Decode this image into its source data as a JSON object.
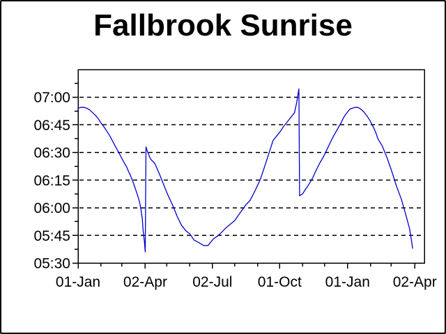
{
  "page": {
    "background_color": "#ffffff",
    "frame_border_color": "#000000"
  },
  "chart_data": {
    "type": "line",
    "title": "Fallbrook Sunrise",
    "legend": "none",
    "grid": {
      "horizontal": "dashed",
      "vertical": "none",
      "color": "#000000"
    },
    "x_axis": {
      "unit": "date",
      "domain_days": [
        0,
        469
      ],
      "major_ticks": [
        {
          "day": 0,
          "label": "01-Jan"
        },
        {
          "day": 91,
          "label": "02-Apr"
        },
        {
          "day": 182,
          "label": "02-Jul"
        },
        {
          "day": 273,
          "label": "01-Oct"
        },
        {
          "day": 365,
          "label": "01-Jan"
        },
        {
          "day": 456,
          "label": "02-Apr"
        }
      ],
      "minor_tick_days": [
        31,
        59,
        120,
        151,
        212,
        243,
        304,
        334,
        396,
        424
      ]
    },
    "y_axis": {
      "unit": "time-of-day",
      "domain_minutes": [
        330,
        435
      ],
      "domain_labels": [
        "05:30",
        "07:15"
      ],
      "major_ticks": [
        {
          "minutes": 420,
          "label": "07:00"
        },
        {
          "minutes": 405,
          "label": "06:45"
        },
        {
          "minutes": 390,
          "label": "06:30"
        },
        {
          "minutes": 375,
          "label": "06:15"
        },
        {
          "minutes": 360,
          "label": "06:00"
        },
        {
          "minutes": 345,
          "label": "05:45"
        },
        {
          "minutes": 330,
          "label": "05:30"
        }
      ],
      "minor_tick_minutes": [
        427.5,
        412.5,
        397.5,
        382.5,
        367.5,
        352.5,
        337.5
      ]
    },
    "series": [
      {
        "name": "sunrise-time",
        "color": "#0000cc",
        "points_day_minutes": [
          [
            0,
            414
          ],
          [
            4,
            414.5
          ],
          [
            8,
            414.5
          ],
          [
            12,
            414
          ],
          [
            16,
            413
          ],
          [
            20,
            411.5
          ],
          [
            24,
            410
          ],
          [
            28,
            408
          ],
          [
            31,
            406
          ],
          [
            35,
            404
          ],
          [
            39,
            401.5
          ],
          [
            43,
            399
          ],
          [
            47,
            396
          ],
          [
            51,
            393
          ],
          [
            55,
            390
          ],
          [
            59,
            387
          ],
          [
            63,
            384
          ],
          [
            66,
            382
          ],
          [
            68,
            380
          ],
          [
            71,
            377.5
          ],
          [
            74,
            374.5
          ],
          [
            77,
            371
          ],
          [
            80,
            367.5
          ],
          [
            83,
            363.5
          ],
          [
            85,
            359.5
          ],
          [
            87,
            354
          ],
          [
            88,
            348
          ],
          [
            90,
            341
          ],
          [
            91,
            336
          ],
          [
            92,
            393
          ],
          [
            94,
            390.5
          ],
          [
            98,
            386.5
          ],
          [
            104,
            384
          ],
          [
            110,
            378.5
          ],
          [
            116,
            372.5
          ],
          [
            121,
            367.5
          ],
          [
            128,
            361.5
          ],
          [
            134,
            355.5
          ],
          [
            140,
            350.5
          ],
          [
            146,
            347.5
          ],
          [
            151,
            346
          ],
          [
            157,
            342.5
          ],
          [
            164,
            341
          ],
          [
            170,
            339.5
          ],
          [
            176,
            339.5
          ],
          [
            183,
            343
          ],
          [
            190,
            345
          ],
          [
            194,
            346.5
          ],
          [
            200,
            349
          ],
          [
            206,
            351
          ],
          [
            212,
            353
          ],
          [
            219,
            357
          ],
          [
            227,
            361.5
          ],
          [
            233,
            364
          ],
          [
            240,
            369.5
          ],
          [
            247,
            375.5
          ],
          [
            252,
            381.5
          ],
          [
            258,
            389
          ],
          [
            264,
            396.5
          ],
          [
            269,
            399
          ],
          [
            274,
            401.5
          ],
          [
            278,
            404
          ],
          [
            283,
            406.5
          ],
          [
            288,
            409
          ],
          [
            293,
            411.5
          ],
          [
            296,
            417
          ],
          [
            298,
            422
          ],
          [
            299,
            424.5
          ],
          [
            300,
            366.5
          ],
          [
            302,
            367
          ],
          [
            304,
            367.5
          ],
          [
            308,
            370
          ],
          [
            313,
            373
          ],
          [
            318,
            376.5
          ],
          [
            322,
            380
          ],
          [
            327,
            384
          ],
          [
            332,
            387.5
          ],
          [
            337,
            391.5
          ],
          [
            341,
            395
          ],
          [
            346,
            399
          ],
          [
            351,
            402.5
          ],
          [
            356,
            406
          ],
          [
            359,
            408.5
          ],
          [
            362,
            410.5
          ],
          [
            365,
            412
          ],
          [
            368,
            413.5
          ],
          [
            371,
            414
          ],
          [
            375,
            414.5
          ],
          [
            379,
            414.5
          ],
          [
            383,
            413.5
          ],
          [
            387,
            412
          ],
          [
            391,
            410
          ],
          [
            395,
            407.5
          ],
          [
            399,
            404.5
          ],
          [
            403,
            401
          ],
          [
            406,
            397.5
          ],
          [
            412,
            393.5
          ],
          [
            419,
            386.5
          ],
          [
            425,
            379.5
          ],
          [
            431,
            372
          ],
          [
            438,
            364.5
          ],
          [
            444,
            356
          ],
          [
            449,
            348.5
          ],
          [
            452,
            341
          ],
          [
            453,
            338
          ]
        ]
      }
    ]
  }
}
